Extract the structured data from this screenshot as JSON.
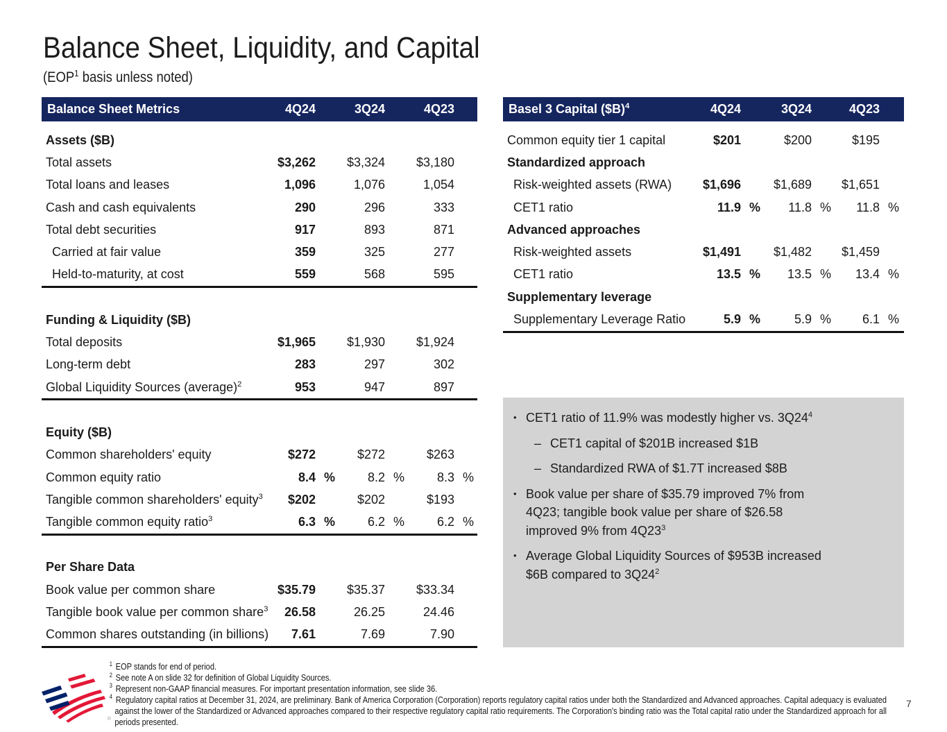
{
  "slide": {
    "title": "Balance Sheet, Liquidity, and Capital",
    "subtitle_pre": "(EOP",
    "subtitle_sup": "1",
    "subtitle_post": " basis unless noted)",
    "page_number": "7"
  },
  "colors": {
    "navy": "#15255E",
    "gray_box": "#D3D3D3",
    "logo_red": "#E31837",
    "logo_blue": "#012169"
  },
  "balance_table": {
    "title": "Balance Sheet Metrics",
    "columns": [
      "4Q24",
      "3Q24",
      "4Q23"
    ],
    "sections": [
      {
        "rows": [
          {
            "type": "head",
            "label": "Assets ($B)"
          },
          {
            "type": "item",
            "label": "Total assets",
            "values": [
              "$3,262",
              "$3,324",
              "$3,180"
            ]
          },
          {
            "type": "item",
            "label": "Total loans and leases",
            "values": [
              "1,096",
              "1,076",
              "1,054"
            ]
          },
          {
            "type": "item",
            "label": "Cash and cash equivalents",
            "values": [
              "290",
              "296",
              "333"
            ]
          },
          {
            "type": "item",
            "label": "Total debt securities",
            "values": [
              "917",
              "893",
              "871"
            ]
          },
          {
            "type": "item",
            "label": "Carried at fair value",
            "indent": 1,
            "values": [
              "359",
              "325",
              "277"
            ]
          },
          {
            "type": "item",
            "label": "Held-to-maturity, at cost",
            "indent": 1,
            "values": [
              "559",
              "568",
              "595"
            ]
          }
        ]
      },
      {
        "rows": [
          {
            "type": "head",
            "label": "Funding & Liquidity ($B)"
          },
          {
            "type": "item",
            "label": "Total deposits",
            "values": [
              "$1,965",
              "$1,930",
              "$1,924"
            ]
          },
          {
            "type": "item",
            "label": "Long-term debt",
            "values": [
              "283",
              "297",
              "302"
            ]
          },
          {
            "type": "item",
            "label": "Global Liquidity Sources (average)",
            "sup": "2",
            "values": [
              "953",
              "947",
              "897"
            ]
          }
        ]
      },
      {
        "rows": [
          {
            "type": "head",
            "label": "Equity ($B)"
          },
          {
            "type": "item",
            "label": "Common shareholders' equity",
            "values": [
              "$272",
              "$272",
              "$263"
            ]
          },
          {
            "type": "item",
            "label": "Common equity ratio",
            "pct": true,
            "values": [
              "8.4",
              "8.2",
              "8.3"
            ]
          },
          {
            "type": "item",
            "label": "Tangible common shareholders' equity",
            "sup": "3",
            "values": [
              "$202",
              "$202",
              "$193"
            ]
          },
          {
            "type": "item",
            "label": "Tangible common equity ratio",
            "sup": "3",
            "pct": true,
            "values": [
              "6.3",
              "6.2",
              "6.2"
            ]
          }
        ]
      },
      {
        "rows": [
          {
            "type": "head",
            "label": "Per Share Data"
          },
          {
            "type": "item",
            "label": "Book value per common share",
            "values": [
              "$35.79",
              "$35.37",
              "$33.34"
            ]
          },
          {
            "type": "item",
            "label": "Tangible book value per common share",
            "sup": "3",
            "values": [
              "26.58",
              "26.25",
              "24.46"
            ]
          },
          {
            "type": "item",
            "label": "Common shares outstanding (in billions)",
            "values": [
              "7.61",
              "7.69",
              "7.90"
            ]
          }
        ]
      }
    ]
  },
  "capital_table": {
    "title": "Basel 3 Capital ($B)",
    "title_sup": "4",
    "columns": [
      "4Q24",
      "3Q24",
      "4Q23"
    ],
    "sections": [
      {
        "rows": [
          {
            "type": "item",
            "label": "Common equity tier 1 capital",
            "values": [
              "$201",
              "$200",
              "$195"
            ]
          },
          {
            "type": "head",
            "label": "Standardized approach"
          },
          {
            "type": "item",
            "label": "Risk-weighted assets (RWA)",
            "indent": 1,
            "values": [
              "$1,696",
              "$1,689",
              "$1,651"
            ]
          },
          {
            "type": "item",
            "label": "CET1 ratio",
            "indent": 1,
            "pct": true,
            "values": [
              "11.9",
              "11.8",
              "11.8"
            ]
          },
          {
            "type": "head",
            "label": "Advanced approaches"
          },
          {
            "type": "item",
            "label": "Risk-weighted assets",
            "indent": 1,
            "values": [
              "$1,491",
              "$1,482",
              "$1,459"
            ]
          },
          {
            "type": "item",
            "label": "CET1 ratio",
            "indent": 1,
            "pct": true,
            "values": [
              "13.5",
              "13.5",
              "13.4"
            ]
          },
          {
            "type": "head",
            "label": "Supplementary leverage"
          },
          {
            "type": "item",
            "label": "Supplementary Leverage Ratio",
            "indent": 1,
            "pct": true,
            "values": [
              "5.9",
              "5.9",
              "6.1"
            ]
          }
        ]
      }
    ]
  },
  "highlights": {
    "marker_l1": "•",
    "marker_l2": "–",
    "bullets": [
      {
        "level": 1,
        "lines": [
          "CET1 ratio of 11.9% was modestly higher vs. 3Q24"
        ],
        "sup": "4"
      },
      {
        "level": 2,
        "lines": [
          "CET1 capital of $201B increased $1B"
        ]
      },
      {
        "level": 2,
        "lines": [
          "Standardized RWA of $1.7T increased $8B"
        ]
      },
      {
        "level": 1,
        "lines": [
          "Book value per share of $35.79 improved 7% from",
          "4Q23; tangible book value per share of $26.58",
          "improved 9% from 4Q23"
        ],
        "sup": "3"
      },
      {
        "level": 1,
        "lines": [
          "Average Global Liquidity Sources of $953B increased",
          "$6B compared to 3Q24"
        ],
        "sup": "2"
      }
    ]
  },
  "footnotes": [
    {
      "sup": "1",
      "text": "EOP stands for end of period."
    },
    {
      "sup": "2",
      "text": "See note A on slide 32 for definition of Global Liquidity Sources."
    },
    {
      "sup": "3",
      "text": "Represent non-GAAP financial measures. For important presentation information, see slide 36."
    },
    {
      "sup": "4",
      "text": "Regulatory capital ratios at December 31, 2024, are preliminary. Bank of America Corporation (Corporation) reports regulatory capital ratios under both the Standardized and Advanced approaches. Capital adequacy is evaluated against the lower of the Standardized or Advanced approaches compared to their respective regulatory capital ratio requirements. The Corporation's binding ratio was the Total capital ratio under the Standardized approach for all periods presented."
    }
  ]
}
